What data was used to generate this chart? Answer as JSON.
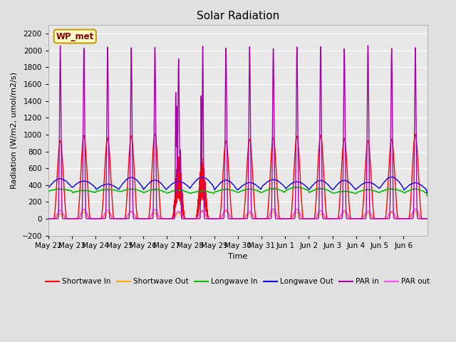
{
  "title": "Solar Radiation",
  "ylabel": "Radiation (W/m2, umol/m2/s)",
  "xlabel": "Time",
  "ylim": [
    -200,
    2300
  ],
  "yticks": [
    -200,
    0,
    200,
    400,
    600,
    800,
    1000,
    1200,
    1400,
    1600,
    1800,
    2000,
    2200
  ],
  "x_tick_labels": [
    "May 22",
    "May 23",
    "May 24",
    "May 25",
    "May 26",
    "May 27",
    "May 28",
    "May 29",
    "May 30",
    "May 31",
    "Jun 1",
    "Jun 2",
    "Jun 3",
    "Jun 4",
    "Jun 5",
    "Jun 6"
  ],
  "annotation_text": "WP_met",
  "background_color": "#e0e0e0",
  "plot_bg_color": "#e8e8e8",
  "series": {
    "shortwave_in": {
      "color": "#ff0000",
      "label": "Shortwave In",
      "lw": 1.0
    },
    "shortwave_out": {
      "color": "#ffa500",
      "label": "Shortwave Out",
      "lw": 1.0
    },
    "longwave_in": {
      "color": "#00bb00",
      "label": "Longwave In",
      "lw": 1.0
    },
    "longwave_out": {
      "color": "#0000ee",
      "label": "Longwave Out",
      "lw": 1.0
    },
    "par_in": {
      "color": "#aa00aa",
      "label": "PAR in",
      "lw": 1.0
    },
    "par_out": {
      "color": "#ff44ff",
      "label": "PAR out",
      "lw": 1.0
    }
  },
  "n_days": 16,
  "pts_per_day": 480,
  "figsize": [
    6.4,
    4.8
  ],
  "dpi": 100
}
